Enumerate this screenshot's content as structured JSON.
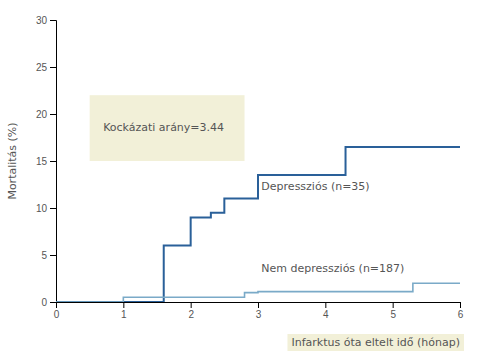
{
  "chart_data": {
    "type": "line",
    "series": [
      {
        "name": "Depressziós (n=35)",
        "color": "#2a6099",
        "x": [
          0,
          1.6,
          1.6,
          2.0,
          2.0,
          2.3,
          2.3,
          2.5,
          2.5,
          3.0,
          3.0,
          4.3,
          4.3,
          5.3,
          5.3,
          6.0
        ],
        "values": [
          0,
          0,
          6.0,
          6.0,
          9.0,
          9.0,
          9.5,
          9.5,
          11.0,
          11.0,
          13.5,
          13.5,
          16.5,
          16.5,
          16.5,
          16.5
        ]
      },
      {
        "name": "Nem depressziós (n=187)",
        "color": "#7aaac8",
        "x": [
          0,
          1.0,
          1.0,
          2.8,
          2.8,
          3.0,
          3.0,
          5.3,
          5.3,
          6.0
        ],
        "values": [
          0,
          0,
          0.5,
          0.5,
          1.0,
          1.0,
          1.1,
          1.1,
          2.0,
          2.0
        ]
      }
    ],
    "annotation": "Kockázati arány=3.44",
    "ylabel": "Mortalitás (%)",
    "xlabel": "Infarktus óta eltelt idő (hónap)",
    "xlim": [
      0,
      6
    ],
    "ylim": [
      0,
      30
    ],
    "xticks": [
      0,
      1,
      2,
      3,
      4,
      5,
      6
    ],
    "yticks": [
      0,
      5,
      10,
      15,
      20,
      25,
      30
    ],
    "grid": false
  }
}
